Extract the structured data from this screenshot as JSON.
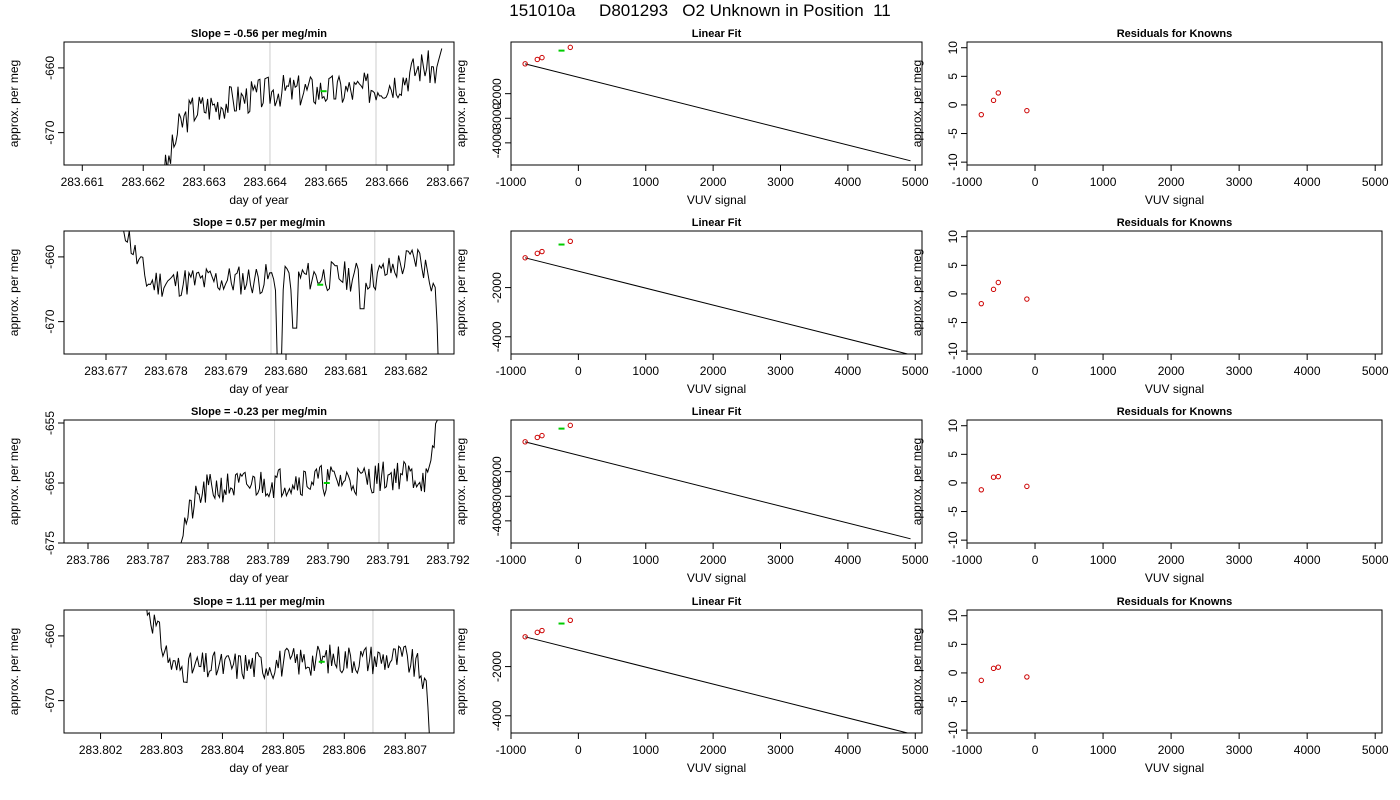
{
  "page": {
    "title": "151010a     D801293   O2 Unknown in Position  11"
  },
  "colors": {
    "trace": "#000000",
    "marker_window": "#cccccc",
    "unknown_point": "#00cc00",
    "known_point": "#cc0000",
    "frame": "#000000"
  },
  "chart_data": [
    {
      "type": "line",
      "panel": "time-series",
      "row": 1,
      "title": "Slope =  -0.56  per meg/min",
      "xlabel": "day of year",
      "ylabel": "approx. per meg",
      "xlim": [
        283.6607,
        283.6671
      ],
      "ylim": [
        -675,
        -656
      ],
      "xticks": [
        "283.661",
        "283.662",
        "283.663",
        "283.664",
        "283.665",
        "283.666",
        "283.667"
      ],
      "yticks": [
        "-660",
        "-670"
      ],
      "vlines": [
        283.66408,
        283.66582
      ],
      "segments": [
        [
          283.6622,
          -679
        ],
        [
          283.6624,
          -675
        ],
        [
          283.6626,
          -669
        ],
        [
          283.6628,
          -666.5
        ],
        [
          283.6635,
          -665
        ],
        [
          283.6642,
          -663.5
        ],
        [
          283.6655,
          -663.5
        ],
        [
          283.6662,
          -662
        ],
        [
          283.6666,
          -659.5
        ],
        [
          283.6668,
          -660.5
        ],
        [
          283.6669,
          -657
        ]
      ],
      "noise": 1.3,
      "seed": 3,
      "unknown_point": [
        283.66496,
        -663.6
      ]
    },
    {
      "type": "scatter",
      "panel": "linear-fit",
      "row": 1,
      "title": "Linear Fit",
      "xlabel": "VUV signal",
      "ylabel": "approx. per meg",
      "xlim": [
        -1000,
        5100
      ],
      "ylim": [
        -4900,
        100
      ],
      "xticks": [
        -1000,
        0,
        1000,
        2000,
        3000,
        4000,
        5000
      ],
      "yticks": [
        -2000,
        -3000,
        -4000
      ],
      "fit_line": [
        [
          -790,
          -790
        ],
        [
          4930,
          -4730
        ]
      ],
      "knowns": [
        [
          -790,
          -788
        ],
        [
          -610,
          -610
        ],
        [
          -540,
          -535
        ],
        [
          -120,
          -118
        ]
      ],
      "unknown": [
        -250,
        -250
      ]
    },
    {
      "type": "scatter",
      "panel": "residuals",
      "row": 1,
      "title": "Residuals for Knowns",
      "xlabel": "VUV signal",
      "ylabel": "approx. per meg",
      "xlim": [
        -1000,
        5100
      ],
      "ylim": [
        -10.5,
        11
      ],
      "xticks": [
        -1000,
        0,
        1000,
        2000,
        3000,
        4000,
        5000
      ],
      "yticks": [
        10,
        5,
        0,
        -5,
        -10
      ],
      "points": [
        [
          -790,
          -1.7
        ],
        [
          -610,
          0.8
        ],
        [
          -540,
          2.1
        ],
        [
          -120,
          -1.0
        ]
      ]
    },
    {
      "type": "line",
      "panel": "time-series",
      "row": 2,
      "title": "Slope =  0.57  per meg/min",
      "xlabel": "day of year",
      "ylabel": "approx. per meg",
      "xlim": [
        283.6763,
        283.6828
      ],
      "ylim": [
        -675,
        -656
      ],
      "xticks": [
        "283.677",
        "283.678",
        "283.679",
        "283.680",
        "283.681",
        "283.682"
      ],
      "yticks": [
        "-660",
        "-670"
      ],
      "vlines": [
        283.67975,
        283.68148
      ],
      "segments": [
        [
          283.6771,
          -652
        ],
        [
          283.6773,
          -655
        ],
        [
          283.6775,
          -660
        ],
        [
          283.6777,
          -664
        ],
        [
          283.6795,
          -663.5
        ],
        [
          283.6802,
          -663
        ],
        [
          283.6815,
          -663
        ],
        [
          283.6822,
          -660
        ],
        [
          283.68235,
          -662
        ],
        [
          283.6825,
          -665
        ],
        [
          283.68255,
          -680
        ]
      ],
      "noise": 1.2,
      "seed": 11,
      "dips": [
        [
          283.67988,
          -677
        ],
        [
          283.68014,
          -671
        ],
        [
          283.68128,
          -668
        ]
      ],
      "unknown_point": [
        283.68057,
        -664.3
      ]
    },
    {
      "type": "scatter",
      "panel": "linear-fit",
      "row": 2,
      "title": "Linear Fit",
      "xlabel": "VUV signal",
      "ylabel": "approx. per meg",
      "xlim": [
        -1000,
        5100
      ],
      "ylim": [
        -4700,
        300
      ],
      "xticks": [
        -1000,
        0,
        1000,
        2000,
        3000,
        4000,
        5000
      ],
      "yticks": [
        -2000,
        -4000
      ],
      "fit_line": [
        [
          -790,
          -790
        ],
        [
          4930,
          -4730
        ]
      ],
      "knowns": [
        [
          -790,
          -788
        ],
        [
          -610,
          -610
        ],
        [
          -540,
          -535
        ],
        [
          -120,
          -118
        ]
      ],
      "unknown": [
        -250,
        -250
      ]
    },
    {
      "type": "scatter",
      "panel": "residuals",
      "row": 2,
      "title": "Residuals for Knowns",
      "xlabel": "VUV signal",
      "ylabel": "approx. per meg",
      "xlim": [
        -1000,
        5100
      ],
      "ylim": [
        -10.5,
        11
      ],
      "xticks": [
        -1000,
        0,
        1000,
        2000,
        3000,
        4000,
        5000
      ],
      "yticks": [
        10,
        5,
        0,
        -5,
        -10
      ],
      "points": [
        [
          -790,
          -1.7
        ],
        [
          -610,
          0.8
        ],
        [
          -540,
          2.0
        ],
        [
          -120,
          -0.9
        ]
      ]
    },
    {
      "type": "line",
      "panel": "time-series",
      "row": 3,
      "title": "Slope =  -0.23  per meg/min",
      "xlabel": "day of year",
      "ylabel": "approx. per meg",
      "xlim": [
        283.7856,
        283.7921
      ],
      "ylim": [
        -675,
        -654.5
      ],
      "xticks": [
        "283.786",
        "283.787",
        "283.788",
        "283.789",
        "283.790",
        "283.791",
        "283.792"
      ],
      "yticks": [
        "-655",
        "-665",
        "-675"
      ],
      "vlines": [
        283.78911,
        283.79085
      ],
      "segments": [
        [
          283.7874,
          -679
        ],
        [
          283.7876,
          -672
        ],
        [
          283.7878,
          -668
        ],
        [
          283.788,
          -666
        ],
        [
          283.7885,
          -665.5
        ],
        [
          283.7895,
          -664.5
        ],
        [
          283.7905,
          -664.5
        ],
        [
          283.7912,
          -663.5
        ],
        [
          283.7917,
          -664.5
        ],
        [
          283.79175,
          -660
        ],
        [
          283.7918,
          -655
        ],
        [
          283.7919,
          -653
        ]
      ],
      "noise": 1.3,
      "seed": 21,
      "unknown_point": [
        283.78998,
        -665
      ]
    },
    {
      "type": "scatter",
      "panel": "linear-fit",
      "row": 3,
      "title": "Linear Fit",
      "xlabel": "VUV signal",
      "ylabel": "approx. per meg",
      "xlim": [
        -1000,
        5100
      ],
      "ylim": [
        -4900,
        100
      ],
      "xticks": [
        -1000,
        0,
        1000,
        2000,
        3000,
        4000,
        5000
      ],
      "yticks": [
        -2000,
        -3000,
        -4000
      ],
      "fit_line": [
        [
          -790,
          -790
        ],
        [
          4930,
          -4730
        ]
      ],
      "knowns": [
        [
          -790,
          -788
        ],
        [
          -610,
          -610
        ],
        [
          -540,
          -535
        ],
        [
          -120,
          -118
        ]
      ],
      "unknown": [
        -250,
        -250
      ]
    },
    {
      "type": "scatter",
      "panel": "residuals",
      "row": 3,
      "title": "Residuals for Knowns",
      "xlabel": "VUV signal",
      "ylabel": "approx. per meg",
      "xlim": [
        -1000,
        5100
      ],
      "ylim": [
        -10.5,
        11
      ],
      "xticks": [
        -1000,
        0,
        1000,
        2000,
        3000,
        4000,
        5000
      ],
      "yticks": [
        10,
        5,
        0,
        -5,
        -10
      ],
      "points": [
        [
          -790,
          -1.2
        ],
        [
          -610,
          1.0
        ],
        [
          -540,
          1.1
        ],
        [
          -120,
          -0.6
        ]
      ]
    },
    {
      "type": "line",
      "panel": "time-series",
      "row": 4,
      "title": "Slope =  1.11  per meg/min",
      "xlabel": "day of year",
      "ylabel": "approx. per meg",
      "xlim": [
        283.8014,
        283.8078
      ],
      "ylim": [
        -675,
        -656
      ],
      "xticks": [
        "283.802",
        "283.803",
        "283.804",
        "283.805",
        "283.806",
        "283.807"
      ],
      "yticks": [
        "-660",
        "-670"
      ],
      "vlines": [
        283.80472,
        283.80647
      ],
      "segments": [
        [
          283.8026,
          -652
        ],
        [
          283.8028,
          -656
        ],
        [
          283.803,
          -661
        ],
        [
          283.8032,
          -665
        ],
        [
          283.8045,
          -664.5
        ],
        [
          283.8058,
          -663.5
        ],
        [
          283.807,
          -663.5
        ],
        [
          283.8072,
          -665
        ],
        [
          283.80735,
          -667
        ],
        [
          283.8074,
          -676
        ]
      ],
      "noise": 1.2,
      "seed": 31,
      "unknown_point": [
        283.80563,
        -664
      ]
    },
    {
      "type": "scatter",
      "panel": "linear-fit",
      "row": 4,
      "title": "Linear Fit",
      "xlabel": "VUV signal",
      "ylabel": "approx. per meg",
      "xlim": [
        -1000,
        5100
      ],
      "ylim": [
        -4700,
        300
      ],
      "xticks": [
        -1000,
        0,
        1000,
        2000,
        3000,
        4000,
        5000
      ],
      "yticks": [
        -2000,
        -4000
      ],
      "fit_line": [
        [
          -790,
          -790
        ],
        [
          4930,
          -4730
        ]
      ],
      "knowns": [
        [
          -790,
          -788
        ],
        [
          -610,
          -610
        ],
        [
          -540,
          -535
        ],
        [
          -120,
          -118
        ]
      ],
      "unknown": [
        -250,
        -250
      ]
    },
    {
      "type": "scatter",
      "panel": "residuals",
      "row": 4,
      "title": "Residuals for Knowns",
      "xlabel": "VUV signal",
      "ylabel": "approx. per meg",
      "xlim": [
        -1000,
        5100
      ],
      "ylim": [
        -10.5,
        11
      ],
      "xticks": [
        -1000,
        0,
        1000,
        2000,
        3000,
        4000,
        5000
      ],
      "yticks": [
        10,
        5,
        0,
        -5,
        -10
      ],
      "points": [
        [
          -790,
          -1.3
        ],
        [
          -610,
          0.8
        ],
        [
          -540,
          1.0
        ],
        [
          -120,
          -0.7
        ]
      ]
    }
  ]
}
